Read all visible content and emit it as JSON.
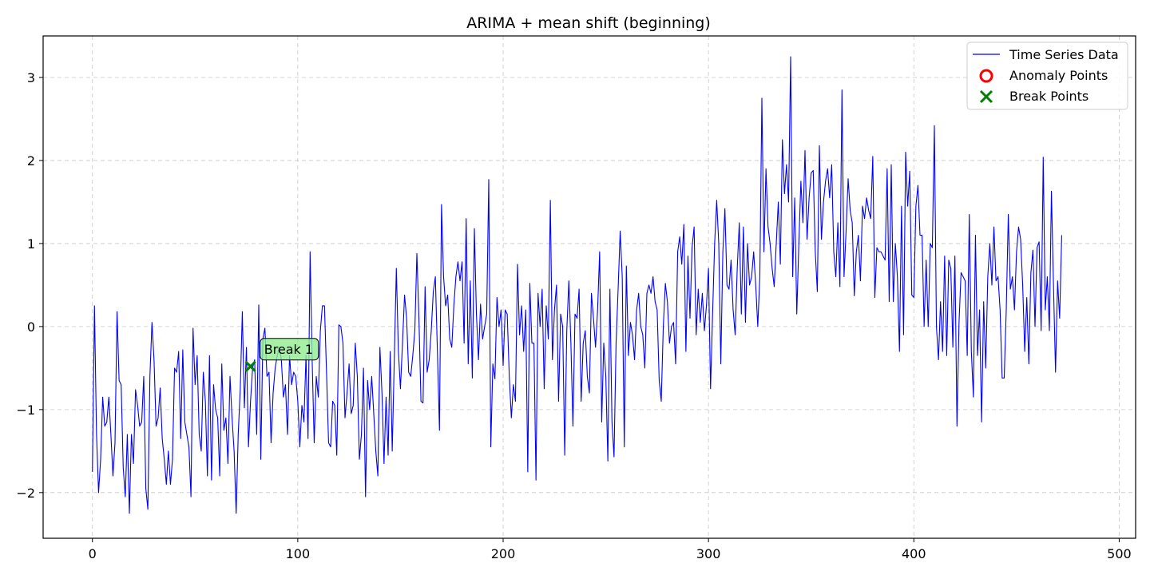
{
  "chart_data": {
    "type": "line",
    "title": "ARIMA + mean shift (beginning)",
    "xlabel": "",
    "ylabel": "",
    "xlim": [
      -24,
      508
    ],
    "ylim": [
      -2.55,
      3.5
    ],
    "xticks": [
      0,
      100,
      200,
      300,
      400,
      500
    ],
    "yticks": [
      -2,
      -1,
      0,
      1,
      2,
      3
    ],
    "xtick_labels": [
      "0",
      "100",
      "200",
      "300",
      "400",
      "500"
    ],
    "ytick_labels": [
      "−2",
      "−1",
      "0",
      "1",
      "2",
      "3"
    ],
    "grid": true,
    "legend_position": "top-right",
    "legend": [
      {
        "label": "Time Series Data",
        "kind": "line",
        "color": "#0000ff"
      },
      {
        "label": "Anomaly Points",
        "kind": "circle",
        "color": "#ff0000"
      },
      {
        "label": "Break Points",
        "kind": "x",
        "color": "#008000"
      }
    ],
    "series": [
      {
        "name": "Time Series Data",
        "color": "#0000ff",
        "x_start": 0,
        "values": [
          -1.75,
          0.25,
          -1.3,
          -2.0,
          -1.6,
          -0.85,
          -1.2,
          -1.15,
          -0.85,
          -1.3,
          -1.8,
          -1.4,
          0.18,
          -0.65,
          -0.7,
          -1.7,
          -2.05,
          -1.3,
          -2.25,
          -1.3,
          -1.65,
          -0.76,
          -0.95,
          -1.2,
          -1.15,
          -0.6,
          -1.95,
          -2.2,
          -0.6,
          0.05,
          -0.4,
          -1.2,
          -1.1,
          -0.74,
          -1.35,
          -1.6,
          -1.9,
          -1.5,
          -1.9,
          -1.6,
          -0.5,
          -0.55,
          -0.3,
          -1.35,
          -0.28,
          -1.15,
          -1.3,
          -1.45,
          -2.05,
          -0.02,
          -0.7,
          -0.35,
          -1.3,
          -1.5,
          -0.55,
          -0.9,
          -1.8,
          -0.35,
          -1.85,
          -0.7,
          -1.0,
          -1.1,
          -1.8,
          -0.45,
          -1.25,
          -1.1,
          -1.65,
          -0.6,
          -1.1,
          -1.5,
          -2.25,
          -1.3,
          -0.75,
          0.18,
          -0.98,
          -0.25,
          -1.45,
          -0.9,
          -0.5,
          -0.4,
          -1.3,
          0.26,
          -1.6,
          -0.15,
          -0.02,
          -0.6,
          -0.55,
          -1.4,
          -0.8,
          -0.5,
          -0.35,
          -0.25,
          -0.4,
          -0.85,
          -0.7,
          -1.3,
          -0.35,
          -0.7,
          -0.55,
          -0.6,
          -0.9,
          -1.45,
          -0.95,
          -1.15,
          -0.35,
          -1.35,
          0.9,
          -0.4,
          -1.4,
          -0.6,
          -0.85,
          -0.05,
          0.25,
          0.25,
          -0.55,
          -1.4,
          -1.45,
          -0.9,
          -0.95,
          -1.55,
          0.02,
          0.0,
          -0.2,
          -1.1,
          -0.8,
          -0.45,
          -1.05,
          -0.95,
          -0.2,
          -0.6,
          -1.6,
          -1.3,
          -0.5,
          -2.05,
          -0.65,
          -1.0,
          -0.6,
          -1.05,
          -1.5,
          -1.8,
          -0.25,
          -0.8,
          -1.65,
          -0.85,
          -1.55,
          -0.3,
          -1.5,
          -0.4,
          0.7,
          -0.3,
          -0.75,
          -0.2,
          0.38,
          0.1,
          -0.55,
          -0.6,
          -0.35,
          -0.05,
          0.88,
          0.1,
          -0.9,
          -0.92,
          0.48,
          -0.55,
          -0.4,
          -0.05,
          0.42,
          0.6,
          -0.3,
          -1.25,
          1.47,
          0.6,
          0.25,
          0.38,
          -0.15,
          -0.25,
          0.25,
          0.6,
          0.78,
          0.55,
          0.78,
          -0.2,
          1.3,
          -0.45,
          0.55,
          -0.62,
          1.18,
          0.15,
          -0.4,
          0.27,
          -0.15,
          0.0,
          0.15,
          1.77,
          -1.45,
          -0.45,
          -0.63,
          0.35,
          0.0,
          0.2,
          -0.47,
          0.2,
          0.15,
          -0.6,
          -1.1,
          -0.7,
          -0.9,
          0.75,
          -0.1,
          0.25,
          -0.3,
          0.2,
          -1.75,
          0.52,
          -0.2,
          -0.2,
          -1.85,
          0.4,
          0.0,
          0.45,
          -0.75,
          0.25,
          -0.15,
          1.52,
          -0.4,
          0.2,
          0.5,
          -0.9,
          0.15,
          0.0,
          -1.55,
          -0.05,
          0.55,
          -0.2,
          -1.2,
          0.15,
          0.1,
          0.45,
          -0.9,
          -0.2,
          -0.05,
          -0.6,
          -0.8,
          0.4,
          0.1,
          -0.25,
          0.2,
          0.9,
          -1.15,
          -0.2,
          -0.6,
          -1.62,
          0.45,
          -1.15,
          -1.57,
          -0.2,
          0.45,
          1.15,
          0.6,
          -1.45,
          0.73,
          -0.35,
          0.05,
          -0.1,
          -0.4,
          0.2,
          0.4,
          0.0,
          -0.1,
          -0.5,
          0.4,
          0.5,
          0.4,
          0.6,
          0.3,
          0.2,
          -0.65,
          -0.9,
          0.0,
          0.52,
          0.3,
          -0.2,
          0.0,
          0.05,
          -0.45,
          0.9,
          1.08,
          0.75,
          1.23,
          -0.3,
          0.85,
          0.1,
          0.95,
          1.2,
          -0.1,
          0.45,
          0.05,
          0.4,
          -0.05,
          0.25,
          0.7,
          -0.75,
          0.15,
          1.0,
          1.52,
          1.0,
          -0.45,
          0.9,
          1.42,
          0.5,
          0.45,
          0.8,
          0.2,
          -0.1,
          0.7,
          1.25,
          0.15,
          1.2,
          0.05,
          1.0,
          0.5,
          0.6,
          0.9,
          0.5,
          0.0,
          0.6,
          2.75,
          0.9,
          1.9,
          1.2,
          1.0,
          0.7,
          0.48,
          1.0,
          1.5,
          0.75,
          2.25,
          1.6,
          1.95,
          1.5,
          3.25,
          0.6,
          1.55,
          0.15,
          1.0,
          1.75,
          1.25,
          2.12,
          1.05,
          1.55,
          1.85,
          1.88,
          0.9,
          0.42,
          2.18,
          1.05,
          1.5,
          1.75,
          1.9,
          1.55,
          1.95,
          0.9,
          0.6,
          1.25,
          0.48,
          2.85,
          0.6,
          1.15,
          1.78,
          1.4,
          1.25,
          0.37,
          0.9,
          1.1,
          0.55,
          1.45,
          1.3,
          1.55,
          1.4,
          1.3,
          2.05,
          0.35,
          0.95,
          0.9,
          0.9,
          0.85,
          0.8,
          1.9,
          0.3,
          1.95,
          0.3,
          1.0,
          0.6,
          -0.3,
          1.45,
          -0.1,
          2.1,
          1.45,
          1.87,
          0.38,
          0.35,
          1.45,
          1.7,
          1.1,
          1.1,
          0.0,
          0.8,
          0.0,
          1.0,
          0.95,
          2.42,
          0.0,
          -0.4,
          0.3,
          -0.3,
          0.85,
          -0.35,
          0.8,
          0.7,
          -0.25,
          0.85,
          -1.2,
          0.05,
          0.65,
          0.6,
          0.55,
          -0.35,
          1.35,
          -0.3,
          -0.85,
          1.1,
          -0.35,
          0.2,
          -1.15,
          0.3,
          -0.5,
          0.6,
          1.0,
          0.5,
          1.2,
          0.55,
          0.6,
          0.2,
          -0.62,
          -0.62,
          0.2,
          1.35,
          0.45,
          0.6,
          0.2,
          0.9,
          1.2,
          1.05,
          0.5,
          -0.3,
          0.35,
          -0.45,
          0.65,
          0.92,
          0.0,
          0.95,
          1.02,
          -0.05,
          2.04,
          0.2,
          0.6,
          -0.05,
          1.63,
          0.5,
          -0.55,
          0.55,
          0.1,
          1.1
        ]
      }
    ],
    "break_points": [
      {
        "x": 77,
        "y": -0.48,
        "label": "Break 1"
      }
    ],
    "anomaly_points": []
  }
}
